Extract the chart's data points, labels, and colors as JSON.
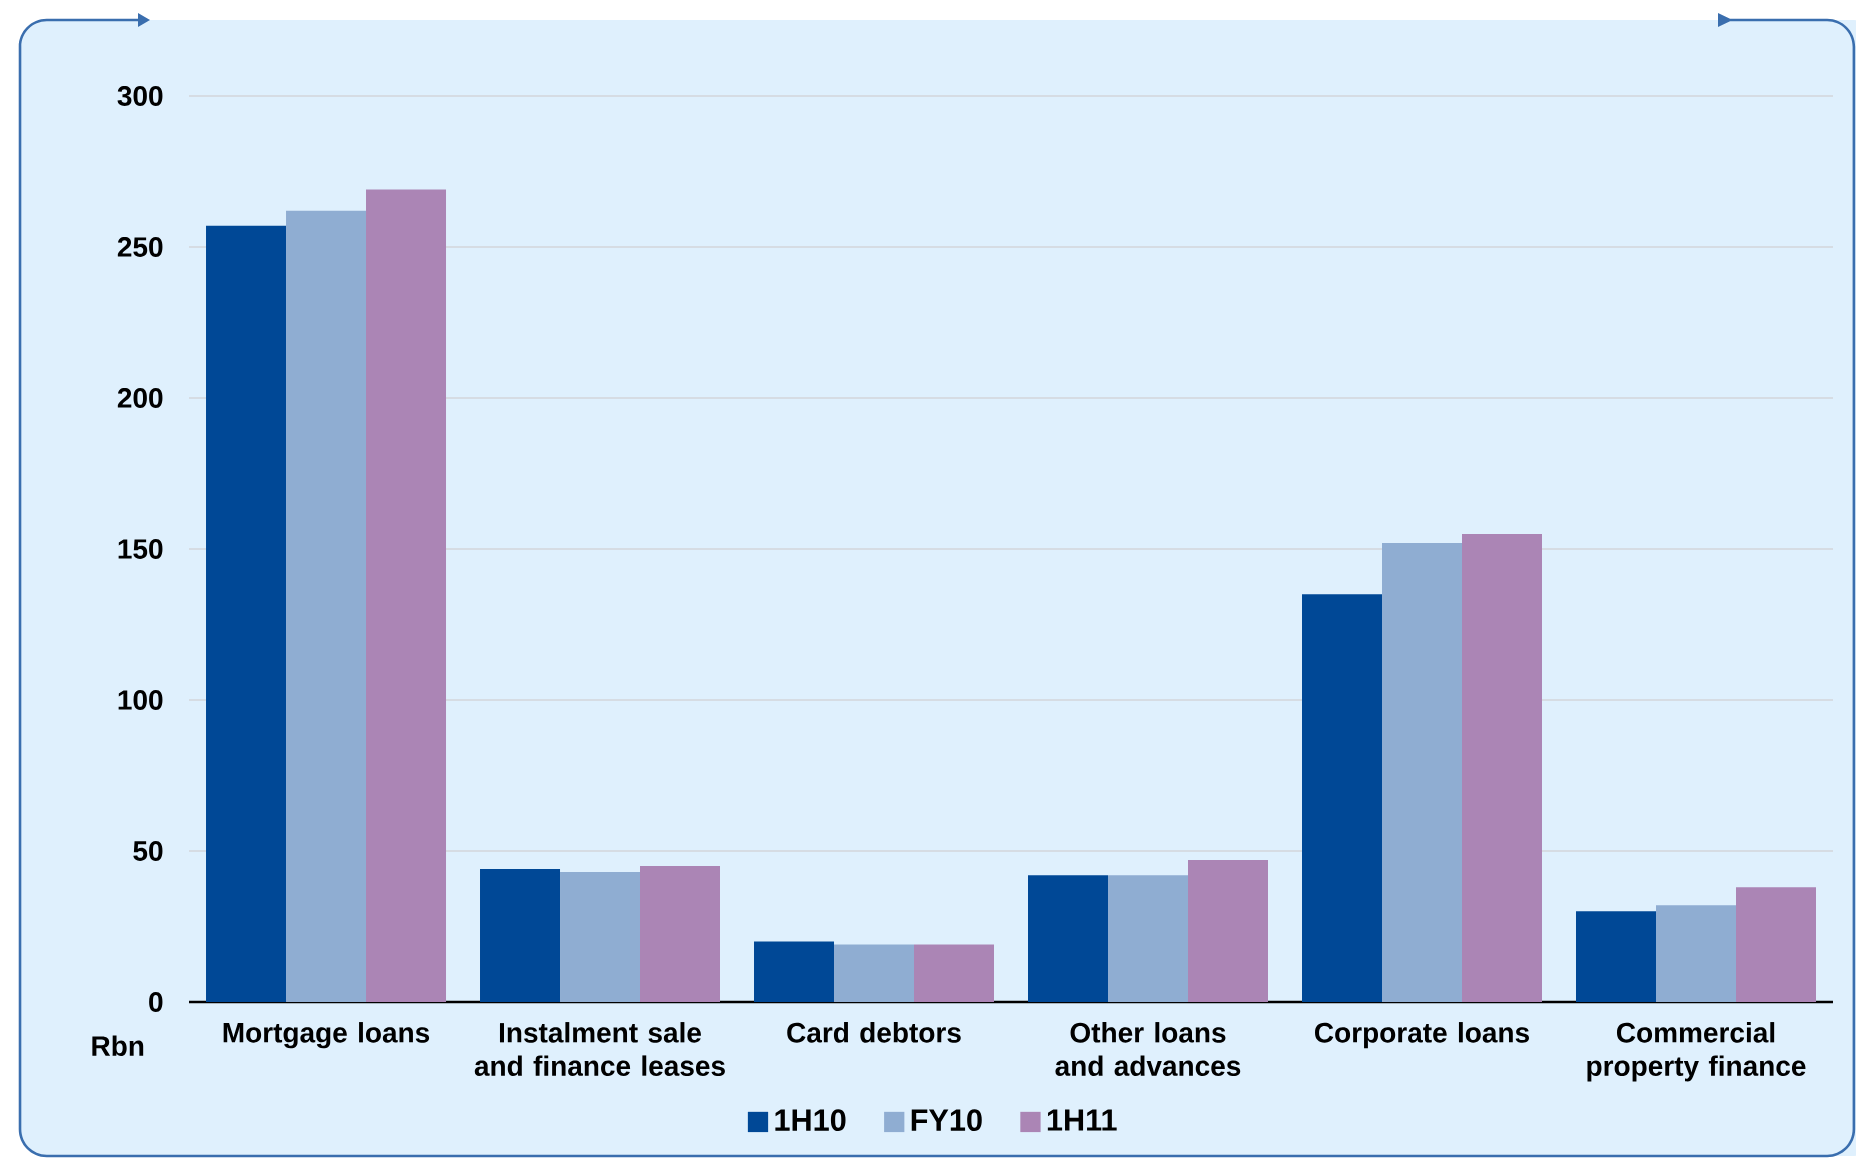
{
  "chart_data": {
    "type": "bar",
    "categories": [
      "Mortgage loans",
      "Instalment sale and finance leases",
      "Card debtors",
      "Other loans and advances",
      "Corporate loans",
      "Commercial property finance"
    ],
    "series": [
      {
        "name": "1H10",
        "color": "#004896",
        "values": [
          257,
          44,
          20,
          42,
          135,
          30
        ]
      },
      {
        "name": "FY10",
        "color": "#8fadd2",
        "values": [
          262,
          43,
          19,
          42,
          152,
          32
        ]
      },
      {
        "name": "1H11",
        "color": "#ab85b5",
        "values": [
          269,
          45,
          19,
          47,
          155,
          38
        ]
      }
    ],
    "ylabel": "Rbn",
    "ylim": [
      0,
      300
    ],
    "yticks": [
      0,
      50,
      100,
      150,
      200,
      250,
      300
    ],
    "grid": "y",
    "legend": "bottom"
  }
}
